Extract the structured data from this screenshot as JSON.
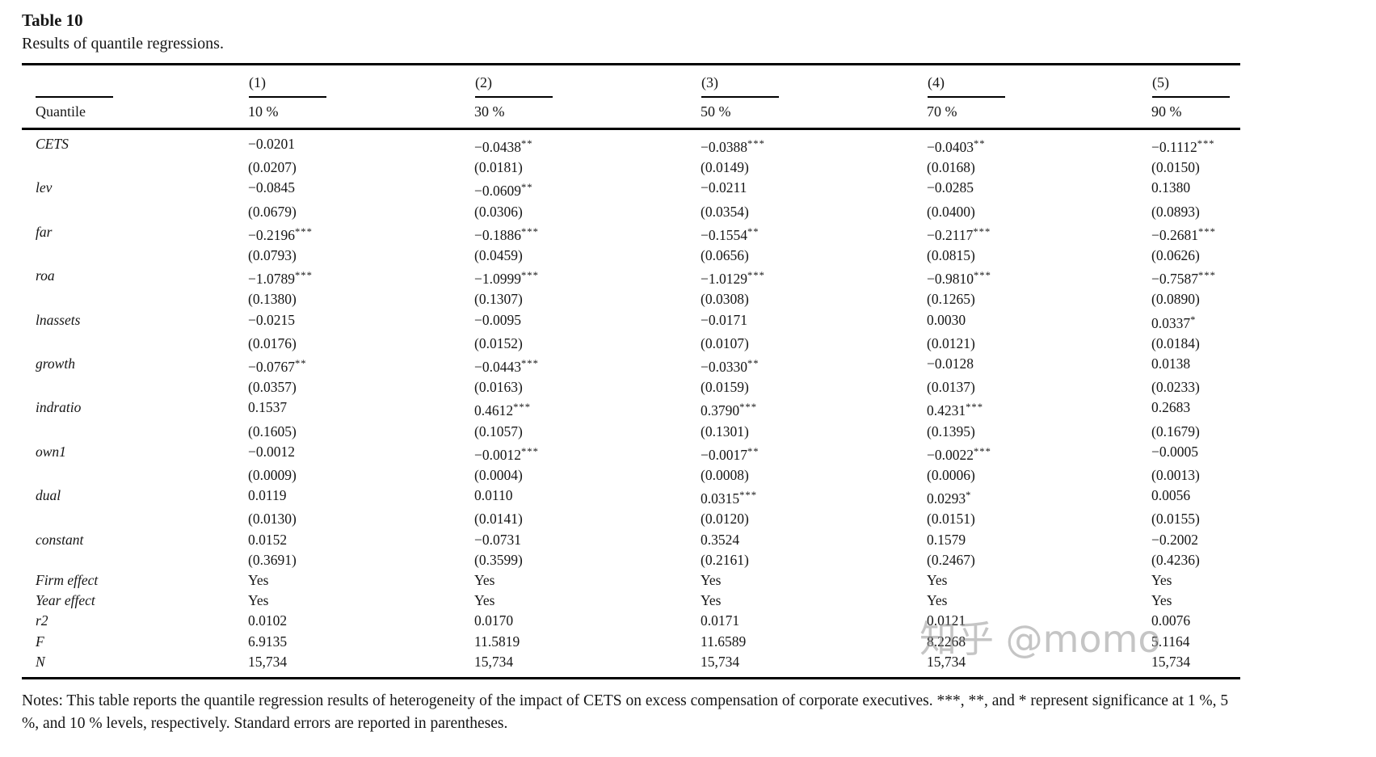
{
  "page": {
    "title": "Table 10",
    "subtitle": "Results of quantile regressions."
  },
  "table": {
    "header": {
      "model_labels": [
        "(1)",
        "(2)",
        "(3)",
        "(4)",
        "(5)"
      ],
      "row_label": "Quantile",
      "quantiles": [
        "10 %",
        "30 %",
        "50 %",
        "70 %",
        "90 %"
      ]
    },
    "rows": [
      {
        "label": "CETS",
        "type": "coef",
        "cells": [
          "−0.0201",
          "−0.0438**",
          "−0.0388***",
          "−0.0403**",
          "−0.1112***"
        ]
      },
      {
        "label": "",
        "type": "se",
        "cells": [
          "(0.0207)",
          "(0.0181)",
          "(0.0149)",
          "(0.0168)",
          "(0.0150)"
        ]
      },
      {
        "label": "lev",
        "type": "coef",
        "cells": [
          "−0.0845",
          "−0.0609**",
          "−0.0211",
          "−0.0285",
          "0.1380"
        ]
      },
      {
        "label": "",
        "type": "se",
        "cells": [
          "(0.0679)",
          "(0.0306)",
          "(0.0354)",
          "(0.0400)",
          "(0.0893)"
        ]
      },
      {
        "label": "far",
        "type": "coef",
        "cells": [
          "−0.2196***",
          "−0.1886***",
          "−0.1554**",
          "−0.2117***",
          "−0.2681***"
        ]
      },
      {
        "label": "",
        "type": "se",
        "cells": [
          "(0.0793)",
          "(0.0459)",
          "(0.0656)",
          "(0.0815)",
          "(0.0626)"
        ]
      },
      {
        "label": "roa",
        "type": "coef",
        "cells": [
          "−1.0789***",
          "−1.0999***",
          "−1.0129***",
          "−0.9810***",
          "−0.7587***"
        ]
      },
      {
        "label": "",
        "type": "se",
        "cells": [
          "(0.1380)",
          "(0.1307)",
          "(0.0308)",
          "(0.1265)",
          "(0.0890)"
        ]
      },
      {
        "label": "lnassets",
        "type": "coef",
        "cells": [
          "−0.0215",
          "−0.0095",
          "−0.0171",
          "0.0030",
          "0.0337*"
        ]
      },
      {
        "label": "",
        "type": "se",
        "cells": [
          "(0.0176)",
          "(0.0152)",
          "(0.0107)",
          "(0.0121)",
          "(0.0184)"
        ]
      },
      {
        "label": "growth",
        "type": "coef",
        "cells": [
          "−0.0767**",
          "−0.0443***",
          "−0.0330**",
          "−0.0128",
          "0.0138"
        ]
      },
      {
        "label": "",
        "type": "se",
        "cells": [
          "(0.0357)",
          "(0.0163)",
          "(0.0159)",
          "(0.0137)",
          "(0.0233)"
        ]
      },
      {
        "label": "indratio",
        "type": "coef",
        "cells": [
          "0.1537",
          "0.4612***",
          "0.3790***",
          "0.4231***",
          "0.2683"
        ]
      },
      {
        "label": "",
        "type": "se",
        "cells": [
          "(0.1605)",
          "(0.1057)",
          "(0.1301)",
          "(0.1395)",
          "(0.1679)"
        ]
      },
      {
        "label": "own1",
        "type": "coef",
        "cells": [
          "−0.0012",
          "−0.0012***",
          "−0.0017**",
          "−0.0022***",
          "−0.0005"
        ]
      },
      {
        "label": "",
        "type": "se",
        "cells": [
          "(0.0009)",
          "(0.0004)",
          "(0.0008)",
          "(0.0006)",
          "(0.0013)"
        ]
      },
      {
        "label": "dual",
        "type": "coef",
        "cells": [
          "0.0119",
          "0.0110",
          "0.0315***",
          "0.0293*",
          "0.0056"
        ]
      },
      {
        "label": "",
        "type": "se",
        "cells": [
          "(0.0130)",
          "(0.0141)",
          "(0.0120)",
          "(0.0151)",
          "(0.0155)"
        ]
      },
      {
        "label": "constant",
        "type": "coef",
        "cells": [
          "0.0152",
          "−0.0731",
          "0.3524",
          "0.1579",
          "−0.2002"
        ]
      },
      {
        "label": "",
        "type": "se",
        "cells": [
          "(0.3691)",
          "(0.3599)",
          "(0.2161)",
          "(0.2467)",
          "(0.4236)"
        ]
      },
      {
        "label": "Firm effect",
        "type": "info",
        "cells": [
          "Yes",
          "Yes",
          "Yes",
          "Yes",
          "Yes"
        ]
      },
      {
        "label": "Year effect",
        "type": "info",
        "cells": [
          "Yes",
          "Yes",
          "Yes",
          "Yes",
          "Yes"
        ]
      },
      {
        "label": "r2",
        "type": "info",
        "cells": [
          "0.0102",
          "0.0170",
          "0.0171",
          "0.0121",
          "0.0076"
        ]
      },
      {
        "label": "F",
        "type": "info",
        "cells": [
          "6.9135",
          "11.5819",
          "11.6589",
          "8.2268",
          "5.1164"
        ]
      },
      {
        "label": "N",
        "type": "info",
        "cells": [
          "15,734",
          "15,734",
          "15,734",
          "15,734",
          "15,734"
        ]
      }
    ]
  },
  "notes": "Notes: This table reports the quantile regression results of heterogeneity of the impact of CETS on excess compensation of corporate executives. ***, **, and * represent significance at 1 %, 5 %, and 10 % levels, respectively. Standard errors are reported in parentheses.",
  "watermark": "知乎 @momo"
}
